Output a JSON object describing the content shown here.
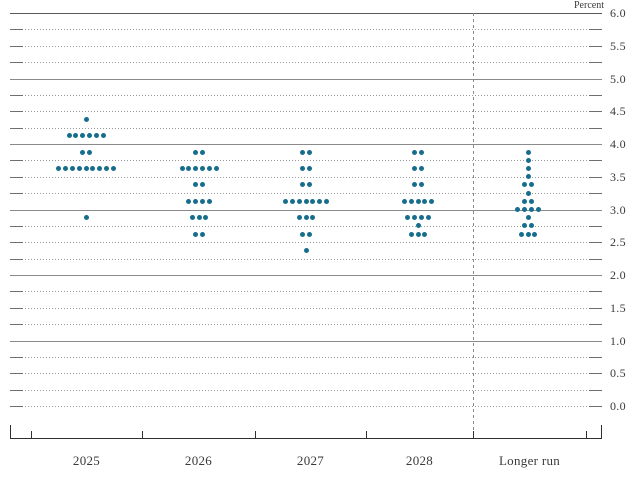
{
  "unit_label": "Percent",
  "chart_data": {
    "type": "scatter",
    "subtype": "fomc-dot-plot",
    "ylabel": "Percent",
    "xlabel": "",
    "ylim": [
      0.0,
      6.0
    ],
    "gridline_step": 0.25,
    "label_step": 0.5,
    "grid": "on",
    "legend_position": "none",
    "y_axis_labels": [
      "6.0",
      "5.5",
      "5.0",
      "4.5",
      "4.0",
      "3.5",
      "3.0",
      "2.5",
      "2.0",
      "1.5",
      "1.0",
      "0.5",
      "0.0"
    ],
    "categories": [
      "2025",
      "2026",
      "2027",
      "2028",
      "Longer run"
    ],
    "series": [
      {
        "name": "2025",
        "dots": [
          {
            "value": 4.375,
            "count": 1
          },
          {
            "value": 4.125,
            "count": 6
          },
          {
            "value": 3.875,
            "count": 2
          },
          {
            "value": 3.625,
            "count": 9
          },
          {
            "value": 2.875,
            "count": 1
          }
        ]
      },
      {
        "name": "2026",
        "dots": [
          {
            "value": 3.875,
            "count": 2
          },
          {
            "value": 3.625,
            "count": 6
          },
          {
            "value": 3.375,
            "count": 2
          },
          {
            "value": 3.125,
            "count": 4
          },
          {
            "value": 2.875,
            "count": 3
          },
          {
            "value": 2.625,
            "count": 2
          }
        ]
      },
      {
        "name": "2027",
        "dots": [
          {
            "value": 3.875,
            "count": 2
          },
          {
            "value": 3.625,
            "count": 2
          },
          {
            "value": 3.375,
            "count": 2
          },
          {
            "value": 3.125,
            "count": 7
          },
          {
            "value": 2.875,
            "count": 3
          },
          {
            "value": 2.625,
            "count": 2
          },
          {
            "value": 2.375,
            "count": 1
          }
        ]
      },
      {
        "name": "2028",
        "dots": [
          {
            "value": 3.875,
            "count": 2
          },
          {
            "value": 3.625,
            "count": 2
          },
          {
            "value": 3.375,
            "count": 2
          },
          {
            "value": 3.125,
            "count": 5
          },
          {
            "value": 2.875,
            "count": 4
          },
          {
            "value": 2.75,
            "count": 1
          },
          {
            "value": 2.625,
            "count": 3
          }
        ]
      },
      {
        "name": "Longer run",
        "dots": [
          {
            "value": 3.875,
            "count": 1
          },
          {
            "value": 3.75,
            "count": 1
          },
          {
            "value": 3.625,
            "count": 1
          },
          {
            "value": 3.5,
            "count": 1
          },
          {
            "value": 3.375,
            "count": 2
          },
          {
            "value": 3.25,
            "count": 1
          },
          {
            "value": 3.125,
            "count": 2
          },
          {
            "value": 3.0,
            "count": 4
          },
          {
            "value": 2.875,
            "count": 1
          },
          {
            "value": 2.75,
            "count": 2
          },
          {
            "value": 2.625,
            "count": 3
          }
        ]
      }
    ],
    "colors": {
      "dot": "#176e8c",
      "grid_dotted": "#9a9a9a",
      "grid_solid": "#8a8a8a",
      "grid_top": "#5a5a5a",
      "axis": "#2f2f2f",
      "text": "#3a3a3a"
    }
  }
}
